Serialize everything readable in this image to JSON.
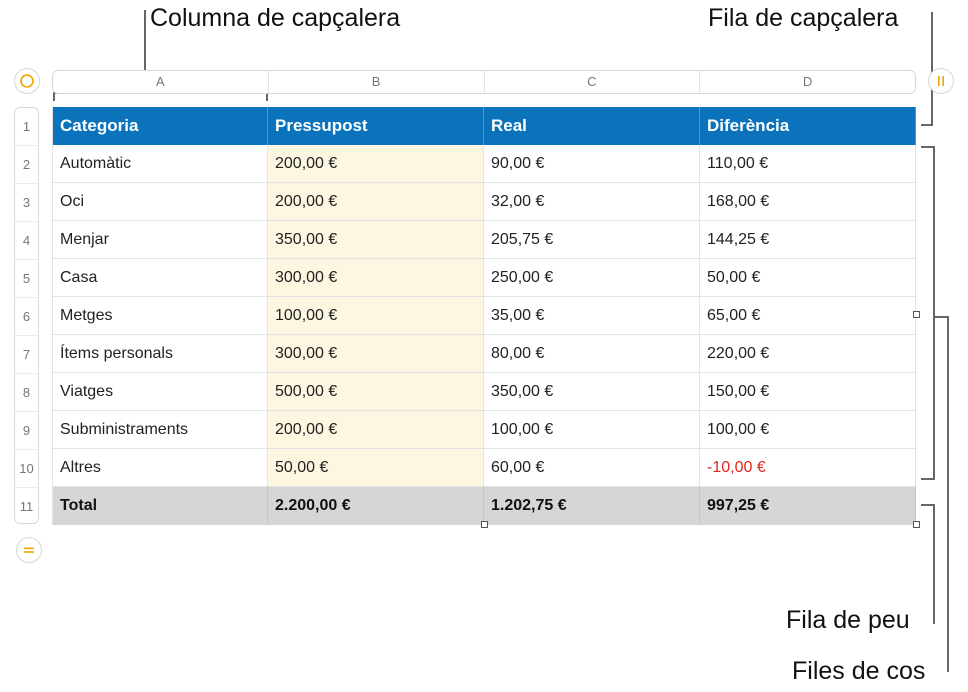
{
  "callouts": {
    "header_column": "Columna de capçalera",
    "header_row": "Fila de capçalera",
    "footer_row": "Fila de peu",
    "body_rows": "Files de cos"
  },
  "column_labels": [
    "A",
    "B",
    "C",
    "D"
  ],
  "row_labels": [
    "1",
    "2",
    "3",
    "4",
    "5",
    "6",
    "7",
    "8",
    "9",
    "10",
    "11"
  ],
  "colors": {
    "header": "#0a73bb",
    "highlight": "#fdf6e0",
    "footer": "#d6d6d6",
    "negative": "#e0291c",
    "accent": "#f4a300"
  },
  "icons": {
    "top_left": "circle-select-icon",
    "top_right": "column-pause-icon",
    "bottom_left": "row-equals-icon"
  },
  "table": {
    "header": [
      "Categoria",
      "Pressupost",
      "Real",
      "Diferència"
    ],
    "rows": [
      [
        "Automàtic",
        "200,00 €",
        "90,00 €",
        "110,00 €"
      ],
      [
        "Oci",
        "200,00 €",
        "32,00 €",
        "168,00 €"
      ],
      [
        "Menjar",
        "350,00 €",
        "205,75 €",
        "144,25 €"
      ],
      [
        "Casa",
        "300,00 €",
        "250,00 €",
        "50,00 €"
      ],
      [
        "Metges",
        "100,00 €",
        "35,00 €",
        "65,00 €"
      ],
      [
        "Ítems personals",
        "300,00 €",
        "80,00 €",
        "220,00 €"
      ],
      [
        "Viatges",
        "500,00 €",
        "350,00 €",
        "150,00 €"
      ],
      [
        "Subministraments",
        "200,00 €",
        "100,00 €",
        "100,00 €"
      ],
      [
        "Altres",
        "50,00 €",
        "60,00 €",
        "-10,00 €"
      ]
    ],
    "footer": [
      "Total",
      "2.200,00 €",
      "1.202,75 €",
      "997,25 €"
    ]
  }
}
